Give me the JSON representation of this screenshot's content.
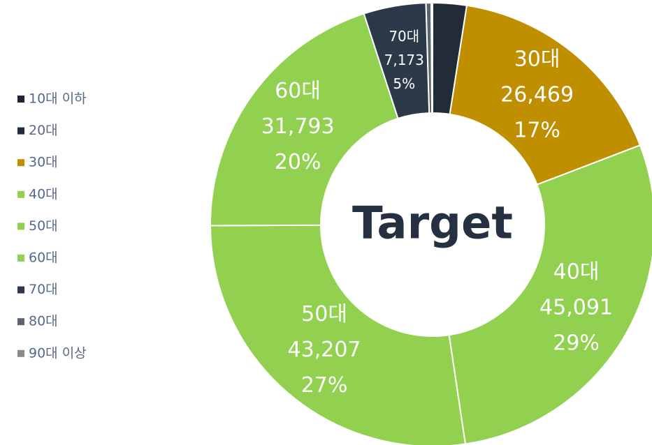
{
  "chart_data": {
    "type": "donut",
    "center_label": "Target",
    "categories": [
      "10대 이하",
      "20대",
      "30대",
      "40대",
      "50대",
      "60대",
      "70대",
      "80대",
      "90대 이상"
    ],
    "values": [
      0,
      3900,
      26469,
      45091,
      43207,
      31793,
      7173,
      600,
      150
    ],
    "value_labels": [
      null,
      null,
      "26,469",
      "45,091",
      "43,207",
      "31,793",
      "7,173",
      null,
      null
    ],
    "percent_labels": [
      null,
      null,
      "17%",
      "29%",
      "27%",
      "20%",
      "5%",
      null,
      null
    ],
    "colors": [
      "#1c2530",
      "#222b38",
      "#bf8f00",
      "#92d050",
      "#92d050",
      "#92d050",
      "#2c3949",
      "#5b6570",
      "#8a8a8a"
    ],
    "legend": "left"
  }
}
